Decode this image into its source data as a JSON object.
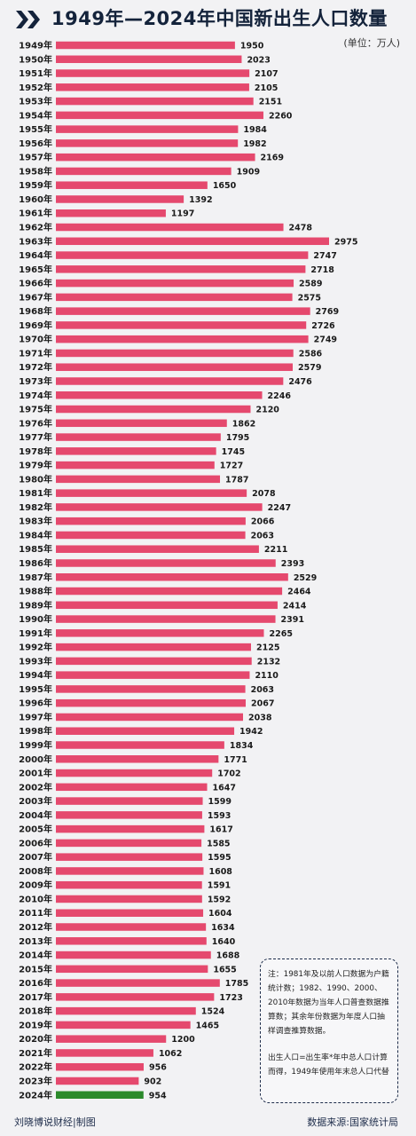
{
  "title": "1949年—2024年中国新出生人口数量",
  "unit": "(单位：万人)",
  "colors": {
    "bar": "#e5496e",
    "highlight": "#2c8a2c",
    "title": "#14233b"
  },
  "chart_data": {
    "type": "bar",
    "orientation": "horizontal",
    "title": "1949年—2024年中国新出生人口数量",
    "unit": "万人",
    "categories": [
      "1949年",
      "1950年",
      "1951年",
      "1952年",
      "1953年",
      "1954年",
      "1955年",
      "1956年",
      "1957年",
      "1958年",
      "1959年",
      "1960年",
      "1961年",
      "1962年",
      "1963年",
      "1964年",
      "1965年",
      "1966年",
      "1967年",
      "1968年",
      "1969年",
      "1970年",
      "1971年",
      "1972年",
      "1973年",
      "1974年",
      "1975年",
      "1976年",
      "1977年",
      "1978年",
      "1979年",
      "1980年",
      "1981年",
      "1982年",
      "1983年",
      "1984年",
      "1985年",
      "1986年",
      "1987年",
      "1988年",
      "1989年",
      "1990年",
      "1991年",
      "1992年",
      "1993年",
      "1994年",
      "1995年",
      "1996年",
      "1997年",
      "1998年",
      "1999年",
      "2000年",
      "2001年",
      "2002年",
      "2003年",
      "2004年",
      "2005年",
      "2006年",
      "2007年",
      "2008年",
      "2009年",
      "2010年",
      "2011年",
      "2012年",
      "2013年",
      "2014年",
      "2015年",
      "2016年",
      "2017年",
      "2018年",
      "2019年",
      "2020年",
      "2021年",
      "2022年",
      "2023年",
      "2024年"
    ],
    "values": [
      1950,
      2023,
      2107,
      2105,
      2151,
      2260,
      1984,
      1982,
      2169,
      1909,
      1650,
      1392,
      1197,
      2478,
      2975,
      2747,
      2718,
      2589,
      2575,
      2769,
      2726,
      2749,
      2586,
      2579,
      2476,
      2246,
      2120,
      1862,
      1795,
      1745,
      1727,
      1787,
      2078,
      2247,
      2066,
      2063,
      2211,
      2393,
      2529,
      2464,
      2414,
      2391,
      2265,
      2125,
      2132,
      2110,
      2063,
      2067,
      2038,
      1942,
      1834,
      1771,
      1702,
      1647,
      1599,
      1593,
      1617,
      1585,
      1595,
      1608,
      1591,
      1592,
      1604,
      1634,
      1640,
      1688,
      1655,
      1785,
      1723,
      1524,
      1465,
      1200,
      1062,
      956,
      902,
      954
    ],
    "highlight_category": "2024年"
  },
  "note": {
    "p1": "注：1981年及以前人口数据为户籍统计数；1982、1990、2000、2010年数据为当年人口普查数据推算数；其余年份数据为年度人口抽样调查推算数据。",
    "p2": "出生人口=出生率*年中总人口计算而得，1949年使用年末总人口代替"
  },
  "footer": {
    "left": "刘晓博说财经|制图",
    "right": "数据来源:国家统计局"
  }
}
